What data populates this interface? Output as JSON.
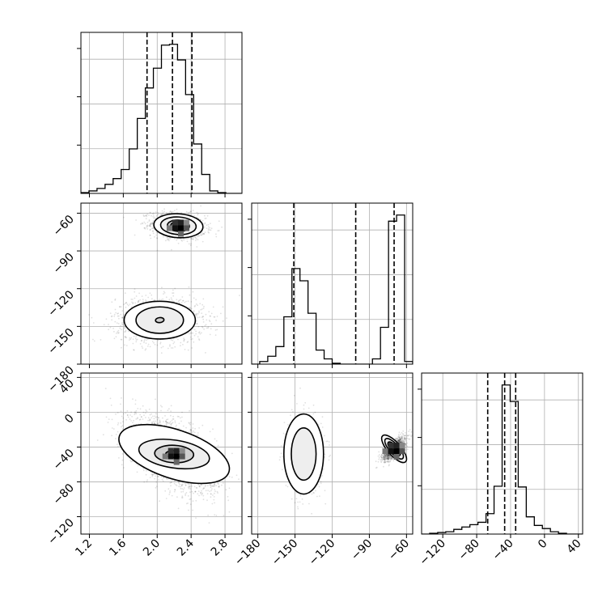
{
  "chart_data": {
    "type": "corner",
    "panels": [
      {
        "id": "hist-p0",
        "row": 0,
        "col": 0,
        "type": "histogram",
        "xlim": [
          1.1,
          3.0
        ],
        "grid": true,
        "bin_edges": [
          1.1,
          1.195,
          1.29,
          1.385,
          1.48,
          1.575,
          1.67,
          1.765,
          1.86,
          1.955,
          2.05,
          2.145,
          2.24,
          2.335,
          2.43,
          2.525,
          2.62,
          2.715,
          2.81,
          2.905,
          3.0
        ],
        "counts": [
          1,
          3,
          6,
          11,
          18,
          29,
          54,
          91,
          128,
          152,
          180,
          181,
          162,
          120,
          60,
          23,
          3,
          1,
          0,
          0
        ],
        "quantiles": [
          1.88,
          2.18,
          2.41
        ]
      },
      {
        "id": "hist-p1",
        "row": 1,
        "col": 1,
        "type": "histogram",
        "xlim": [
          -185,
          -55
        ],
        "grid": true,
        "bin_edges": [
          -185,
          -178.5,
          -172,
          -165.5,
          -159,
          -152.5,
          -146,
          -139.5,
          -133,
          -126.5,
          -120,
          -113.5,
          -107,
          -100.5,
          -94,
          -87.5,
          -81,
          -74.5,
          -68,
          -61.5,
          -55
        ],
        "counts": [
          0,
          3,
          9,
          20,
          54,
          109,
          95,
          58,
          16,
          6,
          1,
          0,
          0,
          0,
          0,
          6,
          42,
          163,
          170,
          3
        ],
        "quantiles": [
          -151,
          -101,
          -70
        ]
      },
      {
        "id": "hist-p2",
        "row": 2,
        "col": 2,
        "type": "histogram",
        "xlim": [
          -145,
          45
        ],
        "grid": true,
        "bin_edges": [
          -145,
          -135.5,
          -126,
          -116.5,
          -107,
          -97.5,
          -88,
          -78.5,
          -69,
          -59.5,
          -50,
          -40.5,
          -31,
          -21.5,
          -12,
          -2.5,
          7,
          16.5,
          26,
          35.5,
          45
        ],
        "counts": [
          0,
          1,
          2,
          3,
          6,
          9,
          12,
          15,
          26,
          61,
          190,
          169,
          60,
          22,
          11,
          7,
          3,
          1,
          0,
          0
        ],
        "quantiles": [
          -67,
          -47,
          -34
        ]
      },
      {
        "id": "scatter-p0-p1",
        "row": 1,
        "col": 0,
        "type": "scatter-density",
        "xlim": [
          1.1,
          3.0
        ],
        "ylim": [
          -180,
          -52
        ],
        "grid": true,
        "modes": [
          {
            "center": [
              2.25,
              -70
            ],
            "sd": [
              0.16,
              5.2
            ],
            "rho": -0.2,
            "weight": 0.5,
            "contours": [
              {
                "rx": 0.29,
                "ry": 9.5,
                "rot": -0.06
              },
              {
                "rx": 0.21,
                "ry": 7.0,
                "rot": -0.06
              },
              {
                "rx": 0.13,
                "ry": 4.5,
                "rot": -0.06
              },
              {
                "rx": 0.09,
                "ry": 3.0,
                "rot": -0.06
              }
            ]
          },
          {
            "center": [
              2.03,
              -145
            ],
            "sd": [
              0.26,
              9.0
            ],
            "rho": 0.0,
            "weight": 0.5,
            "contours": [
              {
                "rx": 0.42,
                "ry": 15.0,
                "rot": 0
              },
              {
                "rx": 0.28,
                "ry": 10.5,
                "rot": 0
              },
              {
                "rx": 0.05,
                "ry": 2.0,
                "rot": 0.1
              }
            ]
          }
        ]
      },
      {
        "id": "scatter-p0-p2",
        "row": 2,
        "col": 0,
        "type": "scatter-density",
        "xlim": [
          1.1,
          3.0
        ],
        "ylim": [
          -140,
          45
        ],
        "grid": true,
        "modes": [
          {
            "center": [
              2.2,
              -48
            ],
            "sd": [
              0.25,
              21
            ],
            "rho": -0.55,
            "weight": 1.0,
            "contours": [
              {
                "rx": 0.68,
                "ry": 28,
                "rot": -0.32
              },
              {
                "rx": 0.42,
                "ry": 16,
                "rot": -0.15
              },
              {
                "rx": 0.23,
                "ry": 10,
                "rot": -0.05
              },
              {
                "rx": 0.1,
                "ry": 4,
                "rot": 0
              }
            ]
          }
        ]
      },
      {
        "id": "scatter-p1-p2",
        "row": 2,
        "col": 1,
        "type": "scatter-density",
        "xlim": [
          -185,
          -55
        ],
        "ylim": [
          -140,
          45
        ],
        "grid": true,
        "modes": [
          {
            "center": [
              -143,
              -48
            ],
            "sd": [
              6.5,
              20
            ],
            "rho": 0.0,
            "weight": 0.5,
            "contours": [
              {
                "rx": 16,
                "ry": 46,
                "rot": 0
              },
              {
                "rx": 10,
                "ry": 30,
                "rot": 0
              }
            ]
          },
          {
            "center": [
              -70,
              -42
            ],
            "sd": [
              4.5,
              6.5
            ],
            "rho": 0.7,
            "weight": 0.5,
            "contours": [
              {
                "rx": 14,
                "ry": 7.5,
                "rot": -0.85
              },
              {
                "rx": 10.5,
                "ry": 5.5,
                "rot": -0.85
              },
              {
                "rx": 7,
                "ry": 3.8,
                "rot": -0.85
              },
              {
                "rx": 4,
                "ry": 2.2,
                "rot": -0.85
              }
            ]
          }
        ]
      }
    ],
    "xticks": [
      {
        "col": 0,
        "values": [
          1.2,
          1.6,
          2.0,
          2.4,
          2.8
        ],
        "labels": [
          "1.2",
          "1.6",
          "2.0",
          "2.4",
          "2.8"
        ]
      },
      {
        "col": 1,
        "values": [
          -180,
          -150,
          -120,
          -90,
          -60
        ],
        "labels": [
          "−180",
          "−150",
          "−120",
          "−90",
          "−60"
        ]
      },
      {
        "col": 2,
        "values": [
          -120,
          -80,
          -40,
          0,
          40
        ],
        "labels": [
          "−120",
          "−80",
          "−40",
          "0",
          "40"
        ]
      }
    ],
    "yticks": [
      {
        "row": 1,
        "values": [
          -60,
          -90,
          -120,
          -150,
          -180
        ],
        "labels": [
          "−60",
          "−90",
          "−120",
          "−150",
          "−180"
        ]
      },
      {
        "row": 2,
        "values": [
          40,
          0,
          -40,
          -80,
          -120
        ],
        "labels": [
          "40",
          "0",
          "−40",
          "−80",
          "−120"
        ]
      }
    ],
    "xlabels": [
      "",
      "",
      ""
    ],
    "ylabels": [
      "",
      ""
    ]
  }
}
